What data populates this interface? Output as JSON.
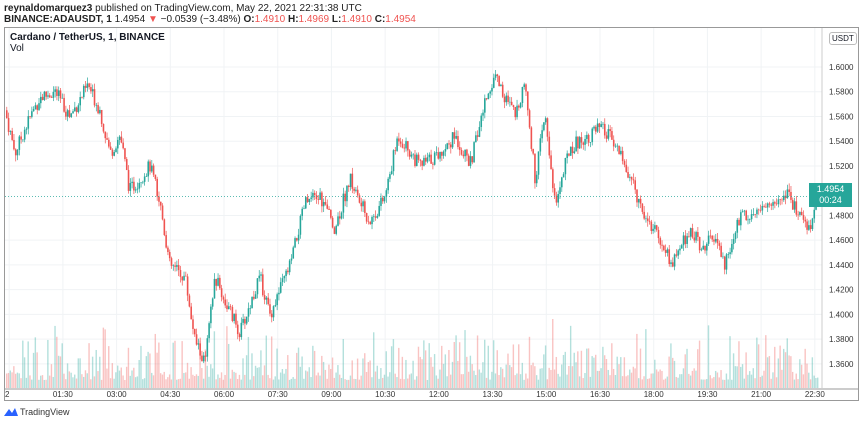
{
  "header": {
    "author": "reynaldomarquez3",
    "published": " published on TradingView.com, May 22, 2021 22:31:38 UTC",
    "symbol": "BINANCE:ADAUSDT, 1",
    "last": " 1.4954 ",
    "change": "−0.0539 (−3.48%)",
    "o_label": " O:",
    "o": "1.4910",
    "h_label": " H:",
    "h": "1.4969",
    "l_label": " L:",
    "l": "1.4910",
    "c_label": " C:",
    "c": "1.4954"
  },
  "legend": {
    "title": "Cardano / TetherUS, 1, BINANCE",
    "vol": "Vol"
  },
  "price_axis": {
    "currency": "USDT",
    "current_price": "1.4954",
    "countdown": "00:24"
  },
  "footer": {
    "brand": "TradingView"
  },
  "colors": {
    "up": "#26a69a",
    "down": "#ef5350"
  },
  "chart_data": {
    "type": "candlestick",
    "title": "Cardano / TetherUS, 1, BINANCE",
    "interval_minutes": 1,
    "ylim": [
      1.345,
      1.623
    ],
    "xlim_minutes": [
      -7,
      1362
    ],
    "y_ticks": [
      "1.6000",
      "1.5800",
      "1.5600",
      "1.5400",
      "1.5200",
      "1.4800",
      "1.4600",
      "1.4400",
      "1.4200",
      "1.4000",
      "1.3800",
      "1.3600"
    ],
    "x_ticks": [
      {
        "m": 0,
        "label": "2"
      },
      {
        "m": 90,
        "label": "01:30"
      },
      {
        "m": 180,
        "label": "03:00"
      },
      {
        "m": 270,
        "label": "04:30"
      },
      {
        "m": 360,
        "label": "06:00"
      },
      {
        "m": 450,
        "label": "07:30"
      },
      {
        "m": 540,
        "label": "09:00"
      },
      {
        "m": 630,
        "label": "10:30"
      },
      {
        "m": 720,
        "label": "12:00"
      },
      {
        "m": 810,
        "label": "13:30"
      },
      {
        "m": 900,
        "label": "15:00"
      },
      {
        "m": 990,
        "label": "16:30"
      },
      {
        "m": 1080,
        "label": "18:00"
      },
      {
        "m": 1170,
        "label": "19:30"
      },
      {
        "m": 1260,
        "label": "21:00"
      },
      {
        "m": 1350,
        "label": "22:30"
      }
    ],
    "price_path_minutes_price": [
      [
        -7,
        1.565
      ],
      [
        10,
        1.53
      ],
      [
        26,
        1.55
      ],
      [
        51,
        1.575
      ],
      [
        77,
        1.58
      ],
      [
        102,
        1.56
      ],
      [
        132,
        1.585
      ],
      [
        152,
        1.565
      ],
      [
        169,
        1.53
      ],
      [
        186,
        1.545
      ],
      [
        202,
        1.5
      ],
      [
        236,
        1.52
      ],
      [
        253,
        1.49
      ],
      [
        269,
        1.44
      ],
      [
        295,
        1.43
      ],
      [
        311,
        1.38
      ],
      [
        328,
        1.36
      ],
      [
        345,
        1.43
      ],
      [
        362,
        1.41
      ],
      [
        387,
        1.385
      ],
      [
        420,
        1.43
      ],
      [
        437,
        1.4
      ],
      [
        471,
        1.44
      ],
      [
        496,
        1.49
      ],
      [
        521,
        1.495
      ],
      [
        546,
        1.47
      ],
      [
        571,
        1.51
      ],
      [
        588,
        1.49
      ],
      [
        605,
        1.475
      ],
      [
        630,
        1.495
      ],
      [
        652,
        1.545
      ],
      [
        688,
        1.52
      ],
      [
        722,
        1.53
      ],
      [
        747,
        1.545
      ],
      [
        772,
        1.52
      ],
      [
        797,
        1.57
      ],
      [
        814,
        1.595
      ],
      [
        831,
        1.575
      ],
      [
        848,
        1.56
      ],
      [
        864,
        1.59
      ],
      [
        881,
        1.51
      ],
      [
        898,
        1.56
      ],
      [
        915,
        1.49
      ],
      [
        940,
        1.535
      ],
      [
        973,
        1.545
      ],
      [
        990,
        1.55
      ],
      [
        1015,
        1.54
      ],
      [
        1040,
        1.51
      ],
      [
        1066,
        1.48
      ],
      [
        1091,
        1.46
      ],
      [
        1111,
        1.44
      ],
      [
        1141,
        1.47
      ],
      [
        1158,
        1.455
      ],
      [
        1183,
        1.46
      ],
      [
        1200,
        1.44
      ],
      [
        1225,
        1.48
      ],
      [
        1258,
        1.485
      ],
      [
        1284,
        1.49
      ],
      [
        1300,
        1.5
      ],
      [
        1325,
        1.48
      ],
      [
        1342,
        1.47
      ],
      [
        1355,
        1.4954
      ]
    ]
  }
}
